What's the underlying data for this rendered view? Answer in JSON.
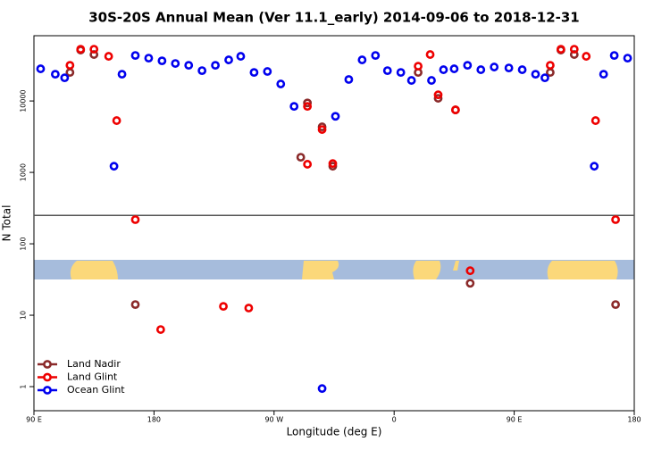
{
  "chart_data": {
    "type": "scatter",
    "title": "30S-20S Annual Mean (Ver 11.1_early)   2014-09-06 to 2018-12-31",
    "x_label": "Longitude (deg E)",
    "y_label": "N Total",
    "xlim": [
      90,
      540
    ],
    "xticks": [
      {
        "value": 90,
        "label": "90 E"
      },
      180,
      {
        "value": 270,
        "label": "90 W"
      },
      {
        "value": 360,
        "label": "0"
      },
      {
        "value": 450,
        "label": "90 E"
      },
      {
        "value": 540,
        "label": "180"
      }
    ],
    "ylim": [
      0.46,
      82000
    ],
    "yticks": [
      1,
      10,
      100,
      1000,
      10000
    ],
    "log_y": true,
    "reference_line": 250,
    "legend": "lower left",
    "series": [
      {
        "name": "Land Nadir",
        "color": "#8b2a2a",
        "x": [
          117,
          125,
          135,
          166,
          290,
          295,
          306,
          314,
          378,
          393,
          406,
          417,
          477,
          485,
          495,
          526
        ],
        "values": [
          25100,
          51600,
          44700,
          14.1,
          1630,
          9400,
          4340,
          1220,
          25100,
          10900,
          7500,
          28,
          25100,
          51600,
          44700,
          14.1
        ]
      },
      {
        "name": "Land Glint",
        "color": "#ee0000",
        "x": [
          117,
          125,
          135,
          146,
          152,
          166,
          185,
          232,
          251,
          295,
          295,
          306,
          314,
          378,
          387,
          393,
          406,
          417,
          477,
          485,
          495,
          504,
          511,
          526
        ],
        "values": [
          31600,
          53100,
          53100,
          42200,
          5310,
          218,
          6.3,
          13.3,
          12.6,
          8400,
          1300,
          3980,
          1330,
          30700,
          44700,
          12200,
          7500,
          42,
          31600,
          53100,
          53100,
          42200,
          5310,
          218
        ]
      },
      {
        "name": "Ocean Glint",
        "color": "#0000ee",
        "x": [
          95,
          106,
          113,
          150,
          156,
          166,
          176,
          186,
          196,
          206,
          216,
          226,
          236,
          245,
          255,
          265,
          275,
          285,
          306,
          316,
          326,
          336,
          346,
          355,
          365,
          373,
          388,
          397,
          405,
          415,
          425,
          435,
          446,
          456,
          466,
          473,
          510,
          517,
          525,
          535
        ],
        "values": [
          28200,
          23700,
          21100,
          1220,
          23700,
          43400,
          39800,
          36500,
          33500,
          31600,
          26600,
          31600,
          37600,
          42200,
          25100,
          25900,
          17300,
          8400,
          0.94,
          6100,
          20000,
          37600,
          43400,
          26600,
          25100,
          19400,
          19400,
          27400,
          28200,
          31600,
          27400,
          29900,
          29000,
          27400,
          23700,
          21100,
          1220,
          23700,
          43400,
          39800
        ]
      }
    ]
  }
}
